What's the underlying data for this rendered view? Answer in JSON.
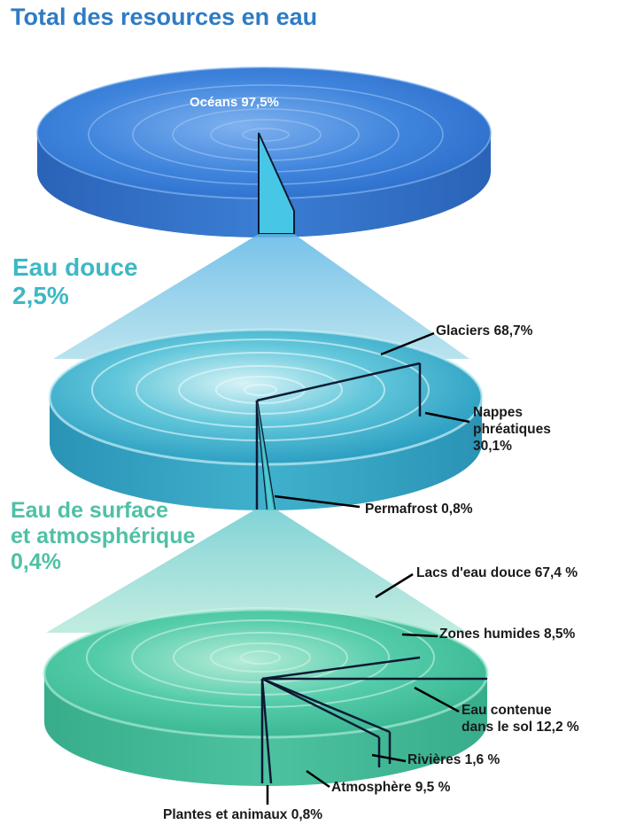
{
  "title": "Total des resources en eau",
  "oceans_label": "Océans 97,5%",
  "fresh": {
    "line1": "Eau douce",
    "line2": "2,5%"
  },
  "surface": {
    "line1": "Eau de surface",
    "line2": "et atmosphérique",
    "line3": "0,4%"
  },
  "fresh_labels": {
    "glaciers": "Glaciers 68,7%",
    "nappes_1": "Nappes",
    "nappes_2": "phréatiques",
    "nappes_3": "30,1%",
    "permafrost": "Permafrost 0,8%"
  },
  "surface_labels": {
    "lacs": "Lacs d'eau douce 67,4 %",
    "zones": "Zones humides 8,5%",
    "sol_1": "Eau contenue",
    "sol_2": "dans le sol 12,2 %",
    "rivieres": "Rivières 1,6 %",
    "atmosphere": "Atmosphère 9,5 %",
    "plantes": "Plantes et animaux 0,8%"
  },
  "colors": {
    "title": "#2f7bc4",
    "fresh": "#3db8c4",
    "surface": "#4fc0a6",
    "disc_top": "#3a7fd6",
    "disc_fresh": "#35a9c9",
    "disc_surface": "#44c4a0"
  }
}
